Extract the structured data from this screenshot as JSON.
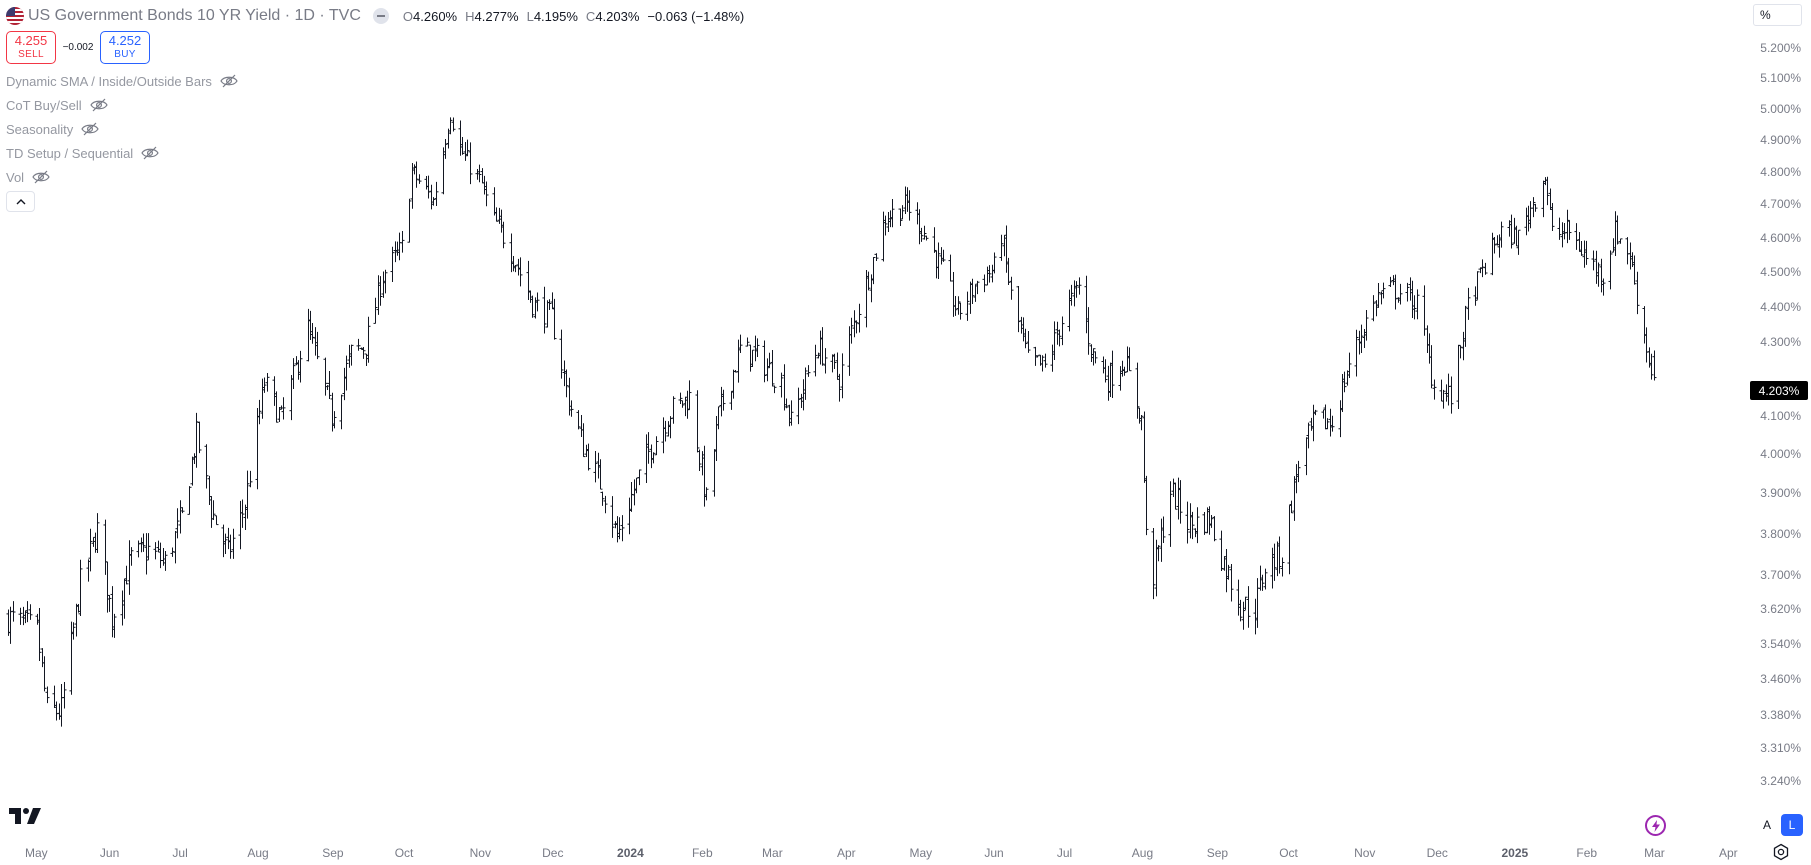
{
  "legend": {
    "title": "US Government Bonds 10 YR Yield · 1D · TVC",
    "ohlc": [
      {
        "key": "O",
        "value": "4.260%"
      },
      {
        "key": "H",
        "value": "4.277%"
      },
      {
        "key": "L",
        "value": "4.195%"
      },
      {
        "key": "C",
        "value": "4.203%"
      }
    ],
    "change": "−0.063 (−1.48%)"
  },
  "trade": {
    "sell_price": "4.255",
    "sell_label": "SELL",
    "spread": "−0.002",
    "buy_price": "4.252",
    "buy_label": "BUY"
  },
  "indicators": [
    {
      "label": "Dynamic SMA / Inside/Outside Bars"
    },
    {
      "label": "CoT Buy/Sell"
    },
    {
      "label": "Seasonality"
    },
    {
      "label": "TD Setup / Sequential"
    },
    {
      "label": "Vol"
    }
  ],
  "price_axis": {
    "unit_button": "%",
    "labels": [
      "5.200%",
      "5.100%",
      "5.000%",
      "4.900%",
      "4.800%",
      "4.700%",
      "4.600%",
      "4.500%",
      "4.400%",
      "4.300%",
      "4.100%",
      "4.000%",
      "3.900%",
      "3.800%",
      "3.700%",
      "3.620%",
      "3.540%",
      "3.460%",
      "3.380%",
      "3.310%",
      "3.240%"
    ],
    "last_price": "4.203%"
  },
  "time_axis": {
    "labels": [
      "May",
      "Jun",
      "Jul",
      "Aug",
      "Sep",
      "Oct",
      "Nov",
      "Dec",
      "2024",
      "Feb",
      "Mar",
      "Apr",
      "May",
      "Jun",
      "Jul",
      "Aug",
      "Sep",
      "Oct",
      "Nov",
      "Dec",
      "2025",
      "Feb",
      "Mar",
      "Apr"
    ],
    "bold_labels": [
      "2024",
      "2025"
    ]
  },
  "controls": {
    "scale_auto": "A",
    "scale_log": "L"
  },
  "colors": {
    "bars": "#131722",
    "sell": "#f23645",
    "buy": "#2962ff",
    "bolt": "#9c27b0"
  },
  "chart_data": {
    "type": "ohlc_bar",
    "series_name": "US Government Bonds 10 YR Yield",
    "interval": "1D",
    "y_unit": "%",
    "log_scale": true,
    "ylim": [
      3.2,
      5.26
    ],
    "x_range": [
      "2023-05-01",
      "2025-03-31"
    ],
    "grid": false,
    "anchors": [
      {
        "date": "2023-04-19",
        "close": 3.6
      },
      {
        "date": "2023-05-01",
        "close": 3.57
      },
      {
        "date": "2023-05-05",
        "close": 3.39
      },
      {
        "date": "2023-05-11",
        "close": 3.39
      },
      {
        "date": "2023-05-19",
        "close": 3.68
      },
      {
        "date": "2023-05-26",
        "close": 3.81
      },
      {
        "date": "2023-06-01",
        "close": 3.6
      },
      {
        "date": "2023-06-09",
        "close": 3.74
      },
      {
        "date": "2023-06-16",
        "close": 3.76
      },
      {
        "date": "2023-06-23",
        "close": 3.73
      },
      {
        "date": "2023-06-30",
        "close": 3.84
      },
      {
        "date": "2023-07-06",
        "close": 4.05
      },
      {
        "date": "2023-07-12",
        "close": 3.86
      },
      {
        "date": "2023-07-19",
        "close": 3.75
      },
      {
        "date": "2023-07-26",
        "close": 3.87
      },
      {
        "date": "2023-08-03",
        "close": 4.19
      },
      {
        "date": "2023-08-10",
        "close": 4.09
      },
      {
        "date": "2023-08-21",
        "close": 4.34
      },
      {
        "date": "2023-08-31",
        "close": 4.1
      },
      {
        "date": "2023-09-08",
        "close": 4.27
      },
      {
        "date": "2023-09-14",
        "close": 4.29
      },
      {
        "date": "2023-09-21",
        "close": 4.49
      },
      {
        "date": "2023-09-29",
        "close": 4.57
      },
      {
        "date": "2023-10-03",
        "close": 4.8
      },
      {
        "date": "2023-10-12",
        "close": 4.71
      },
      {
        "date": "2023-10-19",
        "close": 4.99
      },
      {
        "date": "2023-10-23",
        "close": 4.87
      },
      {
        "date": "2023-11-01",
        "close": 4.76
      },
      {
        "date": "2023-11-06",
        "close": 4.65
      },
      {
        "date": "2023-11-09",
        "close": 4.62
      },
      {
        "date": "2023-11-15",
        "close": 4.53
      },
      {
        "date": "2023-11-22",
        "close": 4.41
      },
      {
        "date": "2023-11-30",
        "close": 4.37
      },
      {
        "date": "2023-12-07",
        "close": 4.14
      },
      {
        "date": "2023-12-13",
        "close": 4.02
      },
      {
        "date": "2023-12-22",
        "close": 3.9
      },
      {
        "date": "2023-12-27",
        "close": 3.79
      },
      {
        "date": "2024-01-03",
        "close": 3.91
      },
      {
        "date": "2024-01-10",
        "close": 4.02
      },
      {
        "date": "2024-01-19",
        "close": 4.12
      },
      {
        "date": "2024-01-26",
        "close": 4.15
      },
      {
        "date": "2024-02-02",
        "close": 3.88
      },
      {
        "date": "2024-02-07",
        "close": 4.1
      },
      {
        "date": "2024-02-16",
        "close": 4.28
      },
      {
        "date": "2024-02-23",
        "close": 4.26
      },
      {
        "date": "2024-03-04",
        "close": 4.19
      },
      {
        "date": "2024-03-08",
        "close": 4.08
      },
      {
        "date": "2024-03-19",
        "close": 4.29
      },
      {
        "date": "2024-03-28",
        "close": 4.2
      },
      {
        "date": "2024-04-02",
        "close": 4.33
      },
      {
        "date": "2024-04-10",
        "close": 4.51
      },
      {
        "date": "2024-04-16",
        "close": 4.66
      },
      {
        "date": "2024-04-25",
        "close": 4.7
      },
      {
        "date": "2024-05-01",
        "close": 4.63
      },
      {
        "date": "2024-05-10",
        "close": 4.5
      },
      {
        "date": "2024-05-16",
        "close": 4.38
      },
      {
        "date": "2024-05-24",
        "close": 4.47
      },
      {
        "date": "2024-05-31",
        "close": 4.51
      },
      {
        "date": "2024-06-03",
        "close": 4.61
      },
      {
        "date": "2024-06-07",
        "close": 4.43
      },
      {
        "date": "2024-06-14",
        "close": 4.25
      },
      {
        "date": "2024-06-21",
        "close": 4.23
      },
      {
        "date": "2024-06-28",
        "close": 4.36
      },
      {
        "date": "2024-07-05",
        "close": 4.46
      },
      {
        "date": "2024-07-10",
        "close": 4.28
      },
      {
        "date": "2024-07-17",
        "close": 4.2
      },
      {
        "date": "2024-07-24",
        "close": 4.25
      },
      {
        "date": "2024-07-31",
        "close": 4.09
      },
      {
        "date": "2024-08-02",
        "close": 3.79
      },
      {
        "date": "2024-08-05",
        "close": 3.7
      },
      {
        "date": "2024-08-12",
        "close": 3.91
      },
      {
        "date": "2024-08-20",
        "close": 3.82
      },
      {
        "date": "2024-08-28",
        "close": 3.84
      },
      {
        "date": "2024-09-03",
        "close": 3.73
      },
      {
        "date": "2024-09-10",
        "close": 3.63
      },
      {
        "date": "2024-09-16",
        "close": 3.62
      },
      {
        "date": "2024-09-20",
        "close": 3.72
      },
      {
        "date": "2024-09-27",
        "close": 3.75
      },
      {
        "date": "2024-10-04",
        "close": 3.98
      },
      {
        "date": "2024-10-11",
        "close": 4.09
      },
      {
        "date": "2024-10-18",
        "close": 4.08
      },
      {
        "date": "2024-10-25",
        "close": 4.24
      },
      {
        "date": "2024-11-01",
        "close": 4.36
      },
      {
        "date": "2024-11-06",
        "close": 4.43
      },
      {
        "date": "2024-11-12",
        "close": 4.45
      },
      {
        "date": "2024-11-15",
        "close": 4.44
      },
      {
        "date": "2024-11-22",
        "close": 4.41
      },
      {
        "date": "2024-11-29",
        "close": 4.18
      },
      {
        "date": "2024-12-06",
        "close": 4.15
      },
      {
        "date": "2024-12-13",
        "close": 4.4
      },
      {
        "date": "2024-12-20",
        "close": 4.52
      },
      {
        "date": "2024-12-27",
        "close": 4.62
      },
      {
        "date": "2025-01-03",
        "close": 4.6
      },
      {
        "date": "2025-01-08",
        "close": 4.69
      },
      {
        "date": "2025-01-14",
        "close": 4.79
      },
      {
        "date": "2025-01-17",
        "close": 4.61
      },
      {
        "date": "2025-01-24",
        "close": 4.62
      },
      {
        "date": "2025-01-31",
        "close": 4.54
      },
      {
        "date": "2025-02-07",
        "close": 4.49
      },
      {
        "date": "2025-02-12",
        "close": 4.62
      },
      {
        "date": "2025-02-18",
        "close": 4.55
      },
      {
        "date": "2025-02-21",
        "close": 4.43
      },
      {
        "date": "2025-02-26",
        "close": 4.25
      },
      {
        "date": "2025-02-28",
        "close": 4.2
      }
    ],
    "last_bar": {
      "open": 4.26,
      "high": 4.277,
      "low": 4.195,
      "close": 4.203
    }
  }
}
